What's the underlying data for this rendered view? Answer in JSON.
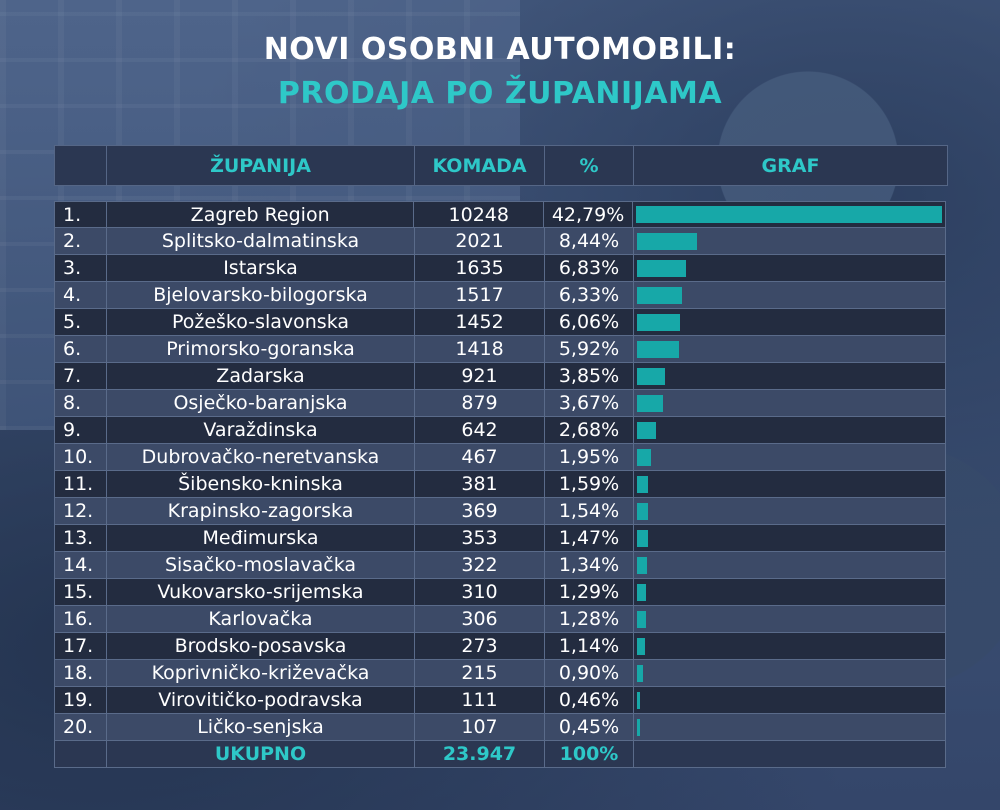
{
  "title_line1": "NOVI OSOBNI AUTOMOBILI:",
  "title_line2": "PRODAJA PO ŽUPANIJAMA",
  "headers": {
    "rank": "",
    "county": "ŽUPANIJA",
    "count": "KOMADA",
    "pct": "%",
    "graph": "GRAF"
  },
  "colors": {
    "accent": "#2ec8c8",
    "bar": "#17a8a8",
    "row_dark": "#232c40",
    "row_light": "#3c4a67"
  },
  "rows": [
    {
      "rank": "1.",
      "name": "Zagreb Region",
      "qty": "10248",
      "pct": "42,79%"
    },
    {
      "rank": "2.",
      "name": "Splitsko-dalmatinska",
      "qty": "2021",
      "pct": "8,44%"
    },
    {
      "rank": "3.",
      "name": "Istarska",
      "qty": "1635",
      "pct": "6,83%"
    },
    {
      "rank": "4.",
      "name": "Bjelovarsko-bilogorska",
      "qty": "1517",
      "pct": "6,33%"
    },
    {
      "rank": "5.",
      "name": "Požeško-slavonska",
      "qty": "1452",
      "pct": "6,06%"
    },
    {
      "rank": "6.",
      "name": "Primorsko-goranska",
      "qty": "1418",
      "pct": "5,92%"
    },
    {
      "rank": "7.",
      "name": "Zadarska",
      "qty": "921",
      "pct": "3,85%"
    },
    {
      "rank": "8.",
      "name": "Osječko-baranjska",
      "qty": "879",
      "pct": "3,67%"
    },
    {
      "rank": "9.",
      "name": "Varaždinska",
      "qty": "642",
      "pct": "2,68%"
    },
    {
      "rank": "10.",
      "name": "Dubrovačko-neretvanska",
      "qty": "467",
      "pct": "1,95%"
    },
    {
      "rank": "11.",
      "name": "Šibensko-kninska",
      "qty": "381",
      "pct": "1,59%"
    },
    {
      "rank": "12.",
      "name": "Krapinsko-zagorska",
      "qty": "369",
      "pct": "1,54%"
    },
    {
      "rank": "13.",
      "name": "Međimurska",
      "qty": "353",
      "pct": "1,47%"
    },
    {
      "rank": "14.",
      "name": "Sisačko-moslavačka",
      "qty": "322",
      "pct": "1,34%"
    },
    {
      "rank": "15.",
      "name": "Vukovarsko-srijemska",
      "qty": "310",
      "pct": "1,29%"
    },
    {
      "rank": "16.",
      "name": "Karlovačka",
      "qty": "306",
      "pct": "1,28%"
    },
    {
      "rank": "17.",
      "name": "Brodsko-posavska",
      "qty": "273",
      "pct": "1,14%"
    },
    {
      "rank": "18.",
      "name": "Koprivničko-križevačka",
      "qty": "215",
      "pct": "0,90%"
    },
    {
      "rank": "19.",
      "name": "Virovitičko-podravska",
      "qty": "111",
      "pct": "0,46%"
    },
    {
      "rank": "20.",
      "name": "Ličko-senjska",
      "qty": "107",
      "pct": "0,45%"
    }
  ],
  "total": {
    "label": "UKUPNO",
    "qty": "23.947",
    "pct": "100%"
  },
  "chart_data": {
    "type": "bar",
    "categories": [
      "Zagreb Region",
      "Splitsko-dalmatinska",
      "Istarska",
      "Bjelovarsko-bilogorska",
      "Požeško-slavonska",
      "Primorsko-goranska",
      "Zadarska",
      "Osječko-baranjska",
      "Varaždinska",
      "Dubrovačko-neretvanska",
      "Šibensko-kninska",
      "Krapinsko-zagorska",
      "Međimurska",
      "Sisačko-moslavačka",
      "Vukovarsko-srijemska",
      "Karlovačka",
      "Brodsko-posavska",
      "Koprivničko-križevačka",
      "Virovitičko-podravska",
      "Ličko-senjska"
    ],
    "values": [
      10248,
      2021,
      1635,
      1517,
      1452,
      1418,
      921,
      879,
      642,
      467,
      381,
      369,
      353,
      322,
      310,
      306,
      273,
      215,
      111,
      107
    ],
    "percentages": [
      42.79,
      8.44,
      6.83,
      6.33,
      6.06,
      5.92,
      3.85,
      3.67,
      2.68,
      1.95,
      1.59,
      1.54,
      1.47,
      1.34,
      1.29,
      1.28,
      1.14,
      0.9,
      0.46,
      0.45
    ],
    "orientation": "horizontal",
    "title": "NOVI OSOBNI AUTOMOBILI: PRODAJA PO ŽUPANIJAMA",
    "xlabel": "",
    "ylabel": "",
    "grid": false,
    "legend": "none"
  }
}
